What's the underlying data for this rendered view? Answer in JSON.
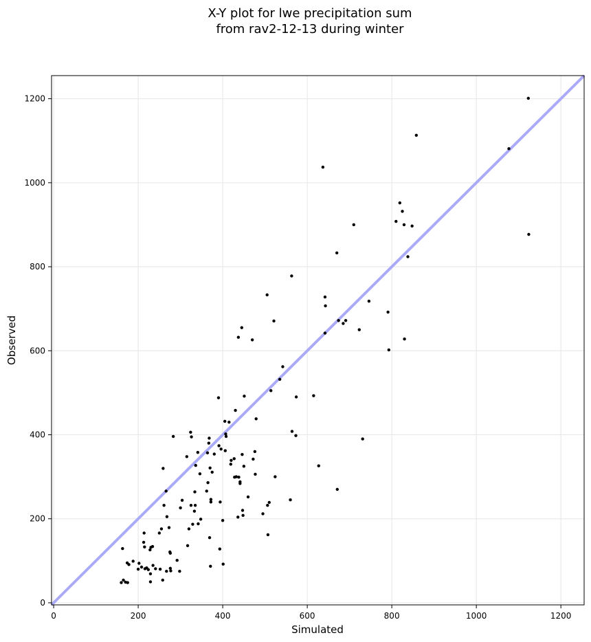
{
  "chart_data": {
    "type": "scatter",
    "title": "X-Y plot for lwe precipitation sum\nfrom rav2-12-13 during winter",
    "xlabel": "Simulated",
    "ylabel": "Observed",
    "xlim": [
      -5,
      1255
    ],
    "ylim": [
      -5,
      1255
    ],
    "xticks": [
      0,
      200,
      400,
      600,
      800,
      1000,
      1200
    ],
    "yticks": [
      0,
      200,
      400,
      600,
      800,
      1000,
      1200
    ],
    "grid": true,
    "reference_line": {
      "type": "identity",
      "color": "#aaaaf8"
    },
    "point_color": "#000000",
    "points": [
      [
        163,
        129
      ],
      [
        160,
        48
      ],
      [
        165,
        54
      ],
      [
        170,
        49
      ],
      [
        175,
        48
      ],
      [
        174,
        95
      ],
      [
        178,
        91
      ],
      [
        188,
        99
      ],
      [
        200,
        80
      ],
      [
        202,
        94
      ],
      [
        208,
        85
      ],
      [
        213,
        144
      ],
      [
        214,
        166
      ],
      [
        215,
        133
      ],
      [
        216,
        81
      ],
      [
        220,
        83
      ],
      [
        224,
        79
      ],
      [
        228,
        126
      ],
      [
        229,
        50
      ],
      [
        229,
        69
      ],
      [
        230,
        132
      ],
      [
        234,
        134
      ],
      [
        235,
        89
      ],
      [
        241,
        81
      ],
      [
        250,
        166
      ],
      [
        252,
        80
      ],
      [
        255,
        176
      ],
      [
        258,
        54
      ],
      [
        259,
        320
      ],
      [
        261,
        232
      ],
      [
        266,
        266
      ],
      [
        267,
        75
      ],
      [
        268,
        205
      ],
      [
        273,
        179
      ],
      [
        275,
        121
      ],
      [
        276,
        118
      ],
      [
        276,
        82
      ],
      [
        277,
        76
      ],
      [
        283,
        396
      ],
      [
        292,
        101
      ],
      [
        298,
        75
      ],
      [
        300,
        226
      ],
      [
        304,
        244
      ],
      [
        315,
        348
      ],
      [
        317,
        136
      ],
      [
        320,
        176
      ],
      [
        324,
        406
      ],
      [
        325,
        232
      ],
      [
        326,
        395
      ],
      [
        329,
        187
      ],
      [
        333,
        218
      ],
      [
        334,
        264
      ],
      [
        335,
        232
      ],
      [
        336,
        327
      ],
      [
        341,
        358
      ],
      [
        342,
        188
      ],
      [
        346,
        307
      ],
      [
        348,
        199
      ],
      [
        362,
        266
      ],
      [
        364,
        357
      ],
      [
        365,
        286
      ],
      [
        367,
        380
      ],
      [
        368,
        392
      ],
      [
        369,
        155
      ],
      [
        370,
        321
      ],
      [
        371,
        87
      ],
      [
        372,
        246
      ],
      [
        372,
        240
      ],
      [
        375,
        311
      ],
      [
        380,
        354
      ],
      [
        390,
        488
      ],
      [
        391,
        374
      ],
      [
        393,
        128
      ],
      [
        394,
        240
      ],
      [
        396,
        366
      ],
      [
        400,
        196
      ],
      [
        401,
        92
      ],
      [
        405,
        432
      ],
      [
        406,
        362
      ],
      [
        407,
        402
      ],
      [
        408,
        396
      ],
      [
        415,
        430
      ],
      [
        419,
        330
      ],
      [
        420,
        339
      ],
      [
        427,
        343
      ],
      [
        428,
        299
      ],
      [
        430,
        458
      ],
      [
        432,
        300
      ],
      [
        436,
        204
      ],
      [
        437,
        632
      ],
      [
        438,
        299
      ],
      [
        441,
        288
      ],
      [
        441,
        284
      ],
      [
        445,
        655
      ],
      [
        446,
        353
      ],
      [
        447,
        220
      ],
      [
        448,
        208
      ],
      [
        450,
        325
      ],
      [
        451,
        492
      ],
      [
        460,
        252
      ],
      [
        470,
        626
      ],
      [
        472,
        342
      ],
      [
        476,
        360
      ],
      [
        477,
        306
      ],
      [
        479,
        438
      ],
      [
        495,
        212
      ],
      [
        505,
        733
      ],
      [
        506,
        232
      ],
      [
        507,
        162
      ],
      [
        510,
        239
      ],
      [
        514,
        505
      ],
      [
        521,
        671
      ],
      [
        524,
        300
      ],
      [
        535,
        532
      ],
      [
        542,
        562
      ],
      [
        560,
        245
      ],
      [
        563,
        778
      ],
      [
        564,
        408
      ],
      [
        573,
        398
      ],
      [
        574,
        490
      ],
      [
        615,
        493
      ],
      [
        627,
        326
      ],
      [
        637,
        1037
      ],
      [
        642,
        642
      ],
      [
        642,
        728
      ],
      [
        643,
        707
      ],
      [
        670,
        833
      ],
      [
        671,
        270
      ],
      [
        674,
        672
      ],
      [
        685,
        665
      ],
      [
        691,
        672
      ],
      [
        710,
        900
      ],
      [
        723,
        650
      ],
      [
        731,
        390
      ],
      [
        746,
        718
      ],
      [
        791,
        692
      ],
      [
        793,
        602
      ],
      [
        810,
        908
      ],
      [
        819,
        952
      ],
      [
        825,
        932
      ],
      [
        829,
        900
      ],
      [
        830,
        628
      ],
      [
        838,
        824
      ],
      [
        848,
        897
      ],
      [
        858,
        1113
      ],
      [
        1077,
        1081
      ],
      [
        1123,
        1201
      ],
      [
        1124,
        877
      ]
    ]
  }
}
